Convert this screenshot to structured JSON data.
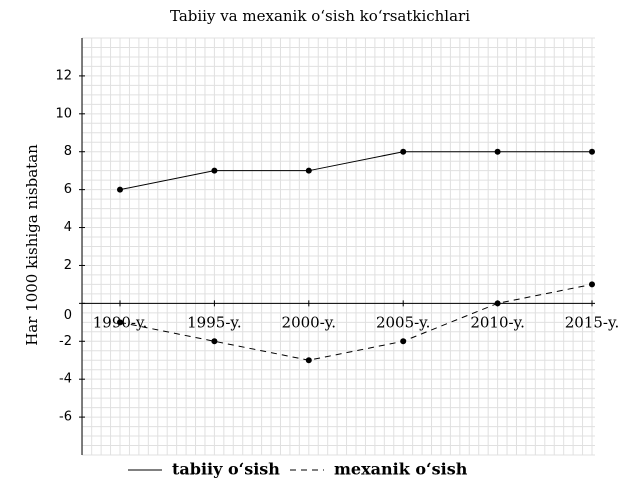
{
  "chart_data": {
    "type": "line",
    "title": "Tabiiy va mexanik o‘sish ko‘rsatkichlari",
    "y_label": "Har 1000 kishiga nisbatan",
    "categories": [
      "1990-y.",
      "1995-y.",
      "2000-y.",
      "2005-y.",
      "2010-y.",
      "2015-y."
    ],
    "series": [
      {
        "name": "tabiiy o‘sish",
        "color": "#000000",
        "dash": "solid",
        "values": [
          6,
          7,
          7,
          8,
          8,
          8
        ]
      },
      {
        "name": "mexanik o‘sish",
        "color": "#000000",
        "dash": "dashed",
        "values": [
          -1,
          -2,
          -3,
          -2,
          0,
          1
        ]
      }
    ],
    "ylim": [
      -8,
      14
    ],
    "yticks": [
      -6,
      -4,
      -2,
      0,
      2,
      4,
      6,
      8,
      10,
      12
    ],
    "grid": true,
    "legend": "bottom"
  }
}
